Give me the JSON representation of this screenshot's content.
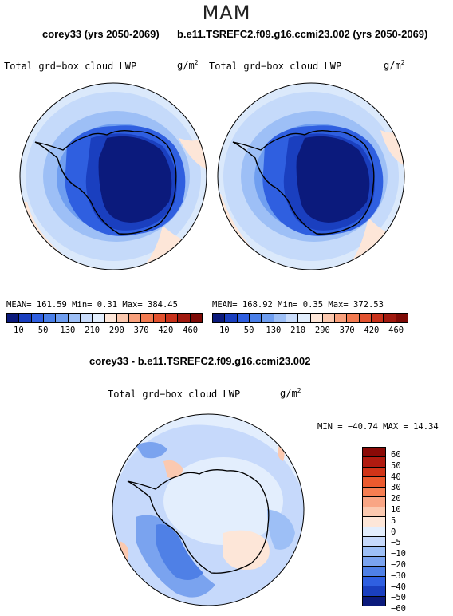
{
  "header": {
    "season": "MAM",
    "left_title": "corey33 (yrs 2050-2069)",
    "right_title": "b.e11.TSREFC2.f09.g16.ccmi23.002 (yrs 2050-2069)",
    "diff_title": "corey33 - b.e11.TSREFC2.f09.g16.ccmi23.002"
  },
  "panels": {
    "left": {
      "label": "Total grd−box cloud LWP",
      "units": "g/m",
      "units_exp": "2",
      "stats": "MEAN= 161.59  Min=    0.31  Max= 384.45"
    },
    "right": {
      "label": "Total grd−box cloud LWP",
      "units": "g/m",
      "units_exp": "2",
      "stats": "MEAN= 168.92  Min=    0.35  Max= 372.53"
    },
    "diff": {
      "label": "Total grd−box cloud LWP",
      "units": "g/m",
      "units_exp": "2",
      "stats": "MIN = −40.74 MAX =  14.34"
    }
  },
  "colorbar_top": {
    "ticks": [
      "10",
      "50",
      "130",
      "210",
      "290",
      "370",
      "420",
      "460"
    ],
    "colors": [
      "#0b1a7c",
      "#1a3fbf",
      "#2f5fe0",
      "#4a7fe8",
      "#6f9ef0",
      "#9dbff6",
      "#c9dcfb",
      "#e2eefd",
      "#fde6d8",
      "#fbc8ae",
      "#f8a07c",
      "#f27a50",
      "#e2522f",
      "#c8321b",
      "#a11a10",
      "#7e0b07"
    ]
  },
  "colorbar_diff": {
    "ticks": [
      "60",
      "50",
      "40",
      "30",
      "20",
      "10",
      "5",
      "0",
      "−5",
      "−10",
      "−20",
      "−30",
      "−40",
      "−50",
      "−60"
    ],
    "colors": [
      "#8a0a07",
      "#b01b10",
      "#d03418",
      "#ec5a2e",
      "#f67e52",
      "#f9a584",
      "#fbc9b0",
      "#fde6d8",
      "#e3eefd",
      "#c6d9fb",
      "#9dbff6",
      "#7aa3ef",
      "#4f80e6",
      "#2f5fe0",
      "#1a3fbf",
      "#0b1a7c"
    ]
  }
}
